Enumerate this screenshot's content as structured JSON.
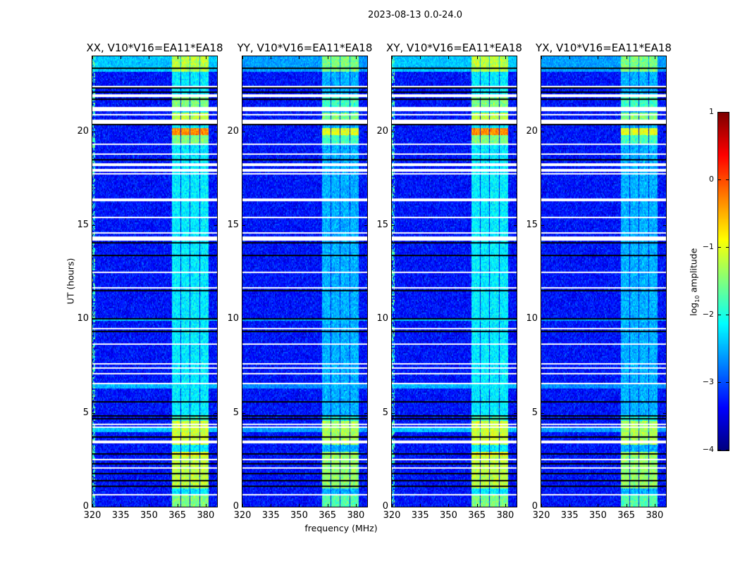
{
  "figure": {
    "suptitle": "2023-08-13 0.0-24.0",
    "xlabel": "frequency (MHz)",
    "ylabel": "UT (hours)"
  },
  "colorbar": {
    "label_main": "log",
    "label_sub": "10",
    "label_tail": " amplitude",
    "colormap": "jet",
    "range": [
      -4,
      1
    ],
    "ticks": [
      "1",
      "0",
      "−1",
      "−2",
      "−3",
      "−4"
    ],
    "tick_values": [
      1,
      0,
      -1,
      -2,
      -3,
      -4
    ]
  },
  "chart_data": {
    "type": "heatmap",
    "xlim": [
      320,
      386
    ],
    "ylim": [
      0,
      24
    ],
    "xticks": [
      320,
      335,
      350,
      365,
      380
    ],
    "xtick_labels": [
      "320",
      "335",
      "350",
      "365",
      "380"
    ],
    "yticks": [
      0,
      5,
      10,
      15,
      20
    ],
    "ytick_labels": [
      "0",
      "5",
      "10",
      "15",
      "20"
    ],
    "background_level": -3.3,
    "rfi_subbands_mhz": [
      [
        362,
        366.5
      ],
      [
        367,
        371.5
      ],
      [
        372,
        376.5
      ],
      [
        377,
        381.5
      ]
    ],
    "panels": [
      {
        "title": "XX, V10*V16=EA11*EA18",
        "band_default": -2.2,
        "edge_stripe": true
      },
      {
        "title": "YY, V10*V16=EA11*EA18",
        "band_default": -2.5,
        "edge_stripe": false
      },
      {
        "title": "XY, V10*V16=EA11*EA18",
        "band_default": -2.2,
        "edge_stripe": true
      },
      {
        "title": "YX, V10*V16=EA11*EA18",
        "band_default": -2.5,
        "edge_stripe": false
      }
    ],
    "rfi_events_hours": [
      {
        "t": [
          23.2,
          24.0
        ],
        "levels": [
          -1.2,
          -1.5,
          -1.2,
          -1.5
        ],
        "broadband": -2.4
      },
      {
        "t": [
          21.1,
          22.0
        ],
        "levels": [
          -1.5,
          -1.8,
          -1.5,
          -1.8
        ]
      },
      {
        "t": [
          20.4,
          21.0
        ],
        "levels": [
          -1.2,
          -1.5,
          -1.2,
          -1.5
        ]
      },
      {
        "t": [
          19.8,
          20.2
        ],
        "levels": [
          -0.3,
          -1.0,
          -0.3,
          -1.0
        ]
      },
      {
        "t": [
          19.3,
          19.8
        ],
        "levels": [
          -1.5,
          -1.8,
          -1.5,
          -1.8
        ]
      },
      {
        "t": [
          4.6,
          4.9
        ],
        "levels": [
          -1.8,
          -2.0,
          -1.8,
          -2.0
        ]
      },
      {
        "t": [
          3.3,
          4.6
        ],
        "levels": [
          -1.1,
          -1.3,
          -1.1,
          -1.3
        ]
      },
      {
        "t": [
          4.0,
          4.3
        ],
        "levels": [
          -1.1,
          -1.3,
          -1.1,
          -1.3
        ],
        "broadband": -2.4
      },
      {
        "t": [
          2.7,
          2.9
        ],
        "levels": [
          -0.9,
          -1.3,
          -0.9,
          -1.3
        ]
      },
      {
        "t": [
          1.0,
          2.7
        ],
        "levels": [
          -1.2,
          -1.4,
          -1.2,
          -1.4
        ]
      },
      {
        "t": [
          0.0,
          0.6
        ],
        "levels": [
          -1.5,
          -1.7,
          -1.5,
          -1.7
        ]
      },
      {
        "t": [
          6.3,
          6.5
        ],
        "levels": [
          -2.3,
          -2.5,
          -2.3,
          -2.5
        ],
        "broadband": -2.5
      },
      {
        "t": [
          9.9,
          10.05
        ],
        "levels": [
          -2.2,
          -2.4,
          -2.2,
          -2.4
        ],
        "broadband": -2.4
      }
    ],
    "flagged_hours": [
      [
        22.35,
        22.45
      ],
      [
        21.85,
        21.95
      ],
      [
        21.1,
        21.3
      ],
      [
        20.85,
        20.95
      ],
      [
        20.4,
        20.6
      ],
      [
        19.25,
        19.35
      ],
      [
        18.75,
        18.85
      ],
      [
        18.25,
        18.32
      ],
      [
        18.15,
        18.2
      ],
      [
        18.05,
        18.1
      ],
      [
        17.95,
        18.0
      ],
      [
        17.85,
        17.9
      ],
      [
        17.7,
        17.76
      ],
      [
        17.22,
        17.28
      ],
      [
        16.25,
        16.4
      ],
      [
        15.38,
        15.44
      ],
      [
        14.58,
        14.64
      ],
      [
        14.15,
        14.4
      ],
      [
        13.92,
        13.98
      ],
      [
        13.02,
        13.08
      ],
      [
        12.47,
        12.53
      ],
      [
        11.62,
        11.68
      ],
      [
        9.46,
        9.56
      ],
      [
        9.04,
        9.1
      ],
      [
        8.6,
        8.7
      ],
      [
        7.56,
        7.64
      ],
      [
        7.36,
        7.42
      ],
      [
        7.07,
        7.13
      ],
      [
        6.94,
        7.0
      ],
      [
        6.53,
        6.59
      ],
      [
        4.54,
        4.6
      ],
      [
        4.35,
        4.41
      ],
      [
        4.22,
        4.28
      ],
      [
        3.4,
        3.55
      ],
      [
        3.04,
        3.1
      ],
      [
        2.45,
        2.55
      ],
      [
        2.03,
        2.09
      ],
      [
        0.6,
        0.7
      ]
    ],
    "dropout_hours": [
      23.35,
      22.8,
      22.3,
      22.1,
      21.7,
      20.35,
      19.2,
      18.5,
      16.2,
      15.9,
      15.0,
      14.05,
      13.4,
      12.75,
      12.6,
      12.0,
      11.5,
      10.95,
      10.0,
      9.35,
      8.55,
      5.6,
      5.1,
      4.85,
      4.7,
      3.9,
      3.7,
      3.15,
      2.8,
      2.3,
      1.75,
      1.4,
      1.1,
      0.45,
      0.3
    ]
  }
}
